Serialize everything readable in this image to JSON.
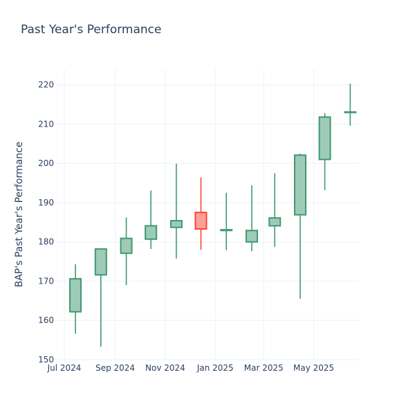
{
  "chart_data": {
    "type": "candlestick",
    "title": "Past Year's Performance",
    "xlabel": "",
    "ylabel": "BAP's Past Year's Performance",
    "ylim": [
      150,
      224
    ],
    "y_ticks": [
      150,
      160,
      170,
      180,
      190,
      200,
      210,
      220
    ],
    "x_ticks": [
      "Jul 2024",
      "Sep 2024",
      "Nov 2024",
      "Jan 2025",
      "Mar 2025",
      "May 2025"
    ],
    "grid": true,
    "colors": {
      "increasing": "#3d9970",
      "increasing_fill": "#9ecbb7",
      "decreasing": "#ff4136",
      "decreasing_fill": "#ff9f9a"
    },
    "candles": [
      {
        "date": "2024-07",
        "open": 162.2,
        "high": 174.3,
        "low": 156.6,
        "close": 170.6
      },
      {
        "date": "2024-08",
        "open": 171.6,
        "high": 178.4,
        "low": 153.3,
        "close": 178.2
      },
      {
        "date": "2024-09",
        "open": 177.1,
        "high": 186.2,
        "low": 169.0,
        "close": 180.9
      },
      {
        "date": "2024-10",
        "open": 180.7,
        "high": 193.1,
        "low": 178.2,
        "close": 184.1
      },
      {
        "date": "2024-11",
        "open": 183.7,
        "high": 199.9,
        "low": 175.8,
        "close": 185.4
      },
      {
        "date": "2024-12",
        "open": 187.5,
        "high": 196.4,
        "low": 178.0,
        "close": 183.3
      },
      {
        "date": "2025-01",
        "open": 182.9,
        "high": 192.5,
        "low": 177.9,
        "close": 183.1
      },
      {
        "date": "2025-02",
        "open": 180.0,
        "high": 194.4,
        "low": 177.6,
        "close": 182.9
      },
      {
        "date": "2025-03",
        "open": 184.1,
        "high": 197.5,
        "low": 178.7,
        "close": 186.1
      },
      {
        "date": "2025-04",
        "open": 186.9,
        "high": 202.5,
        "low": 165.5,
        "close": 202.1
      },
      {
        "date": "2025-05",
        "open": 201.0,
        "high": 212.8,
        "low": 193.2,
        "close": 211.8
      },
      {
        "date": "2025-06",
        "open": 213.0,
        "high": 220.3,
        "low": 209.6,
        "close": 213.1
      }
    ]
  }
}
